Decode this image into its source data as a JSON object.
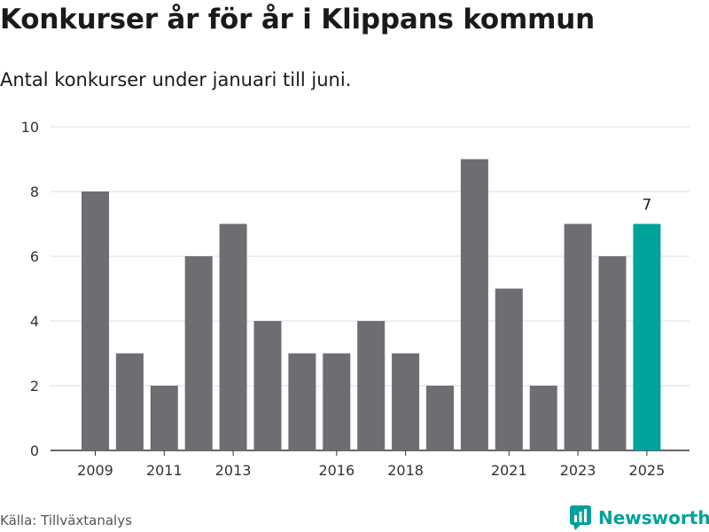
{
  "title": "Konkurser år för år i Klippans kommun",
  "subtitle": "Antal konkurser under januari till juni.",
  "source": "Källa: Tillväxtanalys",
  "brand": {
    "name": "Newsworthy",
    "logo_icon": "newsworthy-chart-logo-icon",
    "color": "#00a19a"
  },
  "colors": {
    "bar": "#6e6d72",
    "highlight": "#00a39a",
    "grid": "#dddddd",
    "axis": "#333333"
  },
  "chart_data": {
    "type": "bar",
    "title": "Konkurser år för år i Klippans kommun",
    "subtitle": "Antal konkurser under januari till juni.",
    "xlabel": "",
    "ylabel": "",
    "categories": [
      "2009",
      "2010",
      "2011",
      "2012",
      "2013",
      "2014",
      "2015",
      "2016",
      "2017",
      "2018",
      "2019",
      "2020",
      "2021",
      "2022",
      "2023",
      "2024",
      "2025"
    ],
    "values": [
      8,
      3,
      2,
      6,
      7,
      4,
      3,
      3,
      4,
      3,
      2,
      9,
      5,
      2,
      7,
      6,
      7
    ],
    "x_tick_labels": [
      "2009",
      "2011",
      "2013",
      "2016",
      "2018",
      "2021",
      "2023",
      "2025"
    ],
    "y_ticks": [
      0,
      2,
      4,
      6,
      8,
      10
    ],
    "ylim": [
      0,
      10
    ],
    "grid": "horizontal",
    "legend": "none",
    "highlight": {
      "category": "2025",
      "label": "7"
    }
  }
}
